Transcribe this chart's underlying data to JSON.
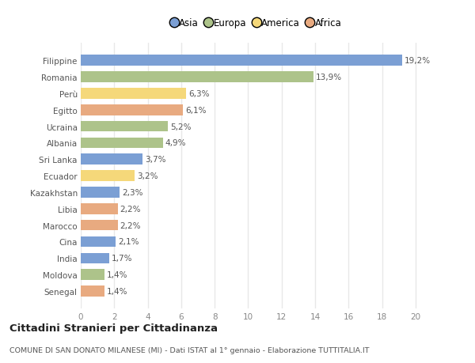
{
  "categories": [
    "Filippine",
    "Romania",
    "Perù",
    "Egitto",
    "Ucraina",
    "Albania",
    "Sri Lanka",
    "Ecuador",
    "Kazakhstan",
    "Libia",
    "Marocco",
    "Cina",
    "India",
    "Moldova",
    "Senegal"
  ],
  "values": [
    19.2,
    13.9,
    6.3,
    6.1,
    5.2,
    4.9,
    3.7,
    3.2,
    2.3,
    2.2,
    2.2,
    2.1,
    1.7,
    1.4,
    1.4
  ],
  "labels": [
    "19,2%",
    "13,9%",
    "6,3%",
    "6,1%",
    "5,2%",
    "4,9%",
    "3,7%",
    "3,2%",
    "2,3%",
    "2,2%",
    "2,2%",
    "2,1%",
    "1,7%",
    "1,4%",
    "1,4%"
  ],
  "continents": [
    "Asia",
    "Europa",
    "America",
    "Africa",
    "Europa",
    "Europa",
    "Asia",
    "America",
    "Asia",
    "Africa",
    "Africa",
    "Asia",
    "Asia",
    "Europa",
    "Africa"
  ],
  "colors": {
    "Asia": "#7b9fd4",
    "Europa": "#adc38a",
    "America": "#f5d87a",
    "Africa": "#e8aa80"
  },
  "xlim": [
    0,
    21
  ],
  "xticks": [
    0,
    2,
    4,
    6,
    8,
    10,
    12,
    14,
    16,
    18,
    20
  ],
  "title": "Cittadini Stranieri per Cittadinanza",
  "subtitle": "COMUNE DI SAN DONATO MILANESE (MI) - Dati ISTAT al 1° gennaio - Elaborazione TUTTITALIA.IT",
  "background_color": "#ffffff",
  "plot_bg_color": "#ffffff",
  "bar_height": 0.65,
  "grid_color": "#e8e8e8",
  "label_fontsize": 7.5,
  "tick_fontsize": 7.5,
  "legend_order": [
    "Asia",
    "Europa",
    "America",
    "Africa"
  ]
}
